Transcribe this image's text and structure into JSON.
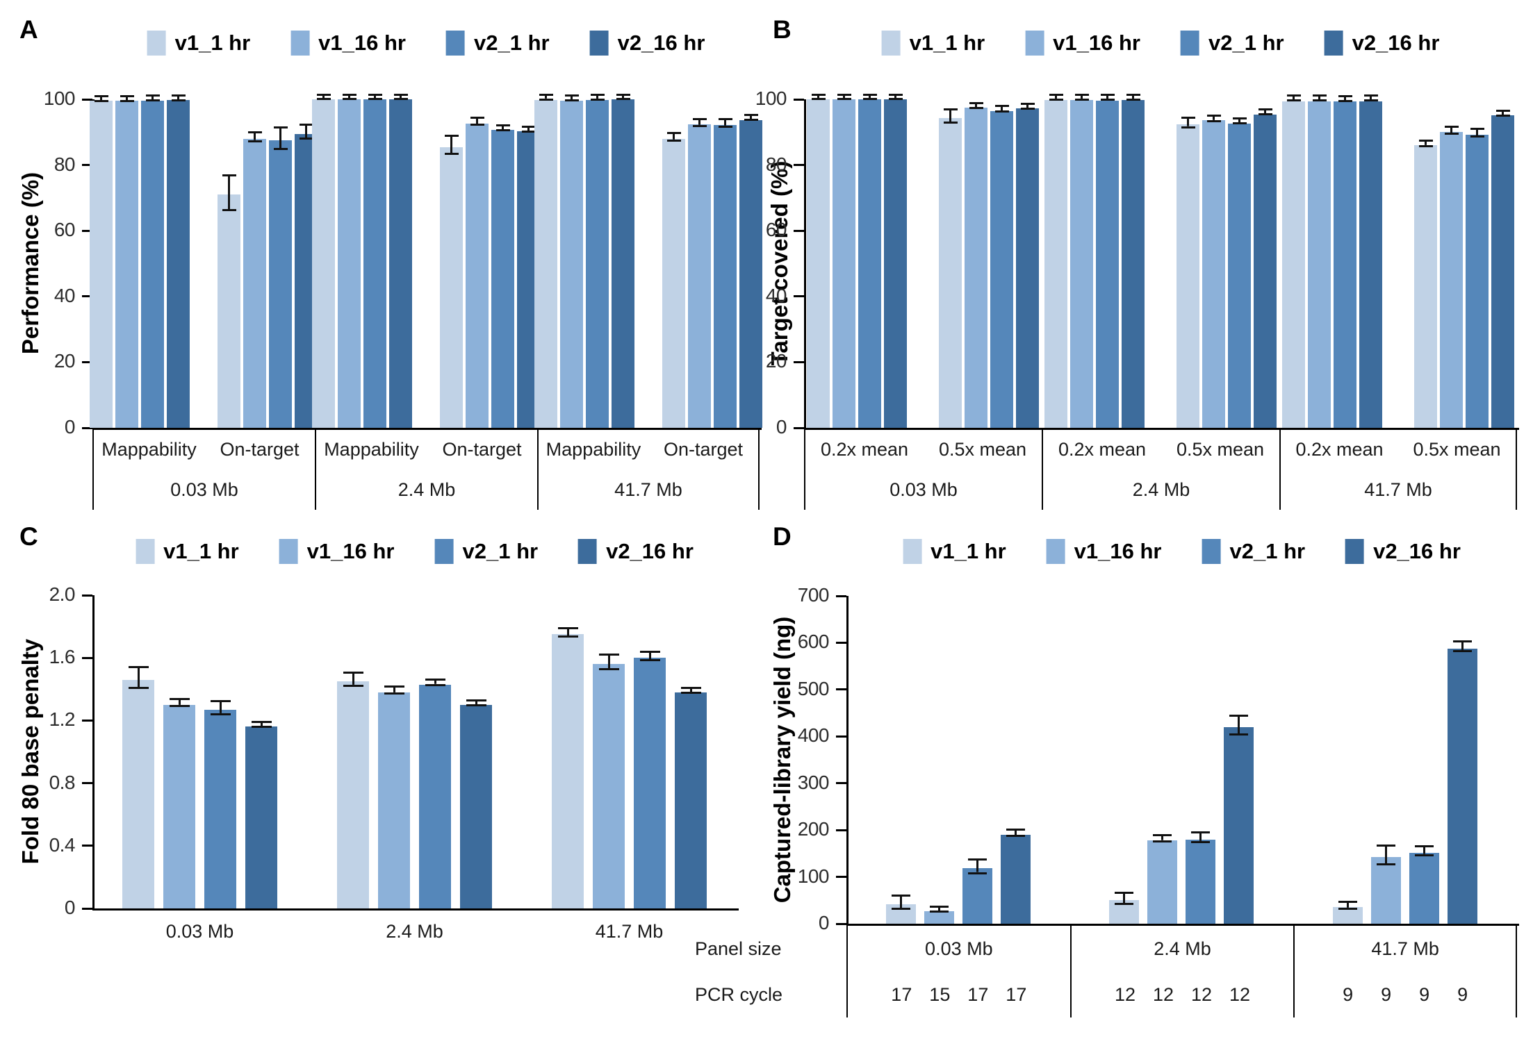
{
  "colors": {
    "background": "#ffffff",
    "axis": "#000000",
    "error_bar": "#111111"
  },
  "series": [
    {
      "name": "v1_1 hr",
      "color": "#c0d2e6"
    },
    {
      "name": "v1_16 hr",
      "color": "#8cb1d9"
    },
    {
      "name": "v2_1 hr",
      "color": "#5587ba"
    },
    {
      "name": "v2_16 hr",
      "color": "#3d6c9c"
    }
  ],
  "chart_data": [
    {
      "panel": "A",
      "type": "bar",
      "ylabel": "Performance (%)",
      "ylim": [
        0,
        100
      ],
      "ytick_labels": [
        "0",
        "20",
        "40",
        "60",
        "80",
        "100"
      ],
      "legend_position": "top-center",
      "grid": false,
      "groups": [
        {
          "label": "0.03 Mb",
          "subgroups": [
            {
              "label": "Mappability",
              "values": [
                99.5,
                99.6,
                99.6,
                99.7
              ],
              "errors": [
                0.4,
                0.4,
                0.3,
                0.3
              ]
            },
            {
              "label": "On-target",
              "values": [
                71.0,
                88.0,
                87.5,
                89.5
              ],
              "errors": [
                5.0,
                1.0,
                3.0,
                1.8
              ]
            }
          ]
        },
        {
          "label": "2.4 Mb",
          "subgroups": [
            {
              "label": "Mappability",
              "values": [
                99.9,
                99.9,
                99.9,
                99.9
              ],
              "errors": [
                0.15,
                0.15,
                0.15,
                0.15
              ]
            },
            {
              "label": "On-target",
              "values": [
                85.5,
                92.7,
                90.7,
                90.2
              ],
              "errors": [
                2.5,
                0.8,
                0.5,
                0.3
              ]
            }
          ]
        },
        {
          "label": "41.7 Mb",
          "subgroups": [
            {
              "label": "Mappability",
              "values": [
                99.8,
                99.6,
                99.8,
                99.9
              ],
              "errors": [
                0.15,
                0.3,
                0.2,
                0.15
              ]
            },
            {
              "label": "On-target",
              "values": [
                88.0,
                92.3,
                92.2,
                93.7
              ],
              "errors": [
                0.8,
                0.7,
                0.8,
                0.3
              ]
            }
          ]
        }
      ]
    },
    {
      "panel": "B",
      "type": "bar",
      "ylabel": "Target covered (%)",
      "ylim": [
        0,
        100
      ],
      "ytick_labels": [
        "0",
        "20",
        "40",
        "60",
        "80",
        "100"
      ],
      "legend_position": "top-center",
      "grid": false,
      "groups": [
        {
          "label": "0.03 Mb",
          "subgroups": [
            {
              "label": "0.2x mean",
              "values": [
                99.9,
                99.9,
                99.9,
                99.9
              ],
              "errors": [
                0.1,
                0.1,
                0.1,
                0.1
              ]
            },
            {
              "label": "0.5x mean",
              "values": [
                94.3,
                97.4,
                96.5,
                97.2
              ],
              "errors": [
                1.7,
                0.3,
                0.6,
                0.3
              ]
            }
          ]
        },
        {
          "label": "2.4 Mb",
          "subgroups": [
            {
              "label": "0.2x mean",
              "values": [
                99.7,
                99.7,
                99.6,
                99.7
              ],
              "errors": [
                0.1,
                0.1,
                0.1,
                0.1
              ]
            },
            {
              "label": "0.5x mean",
              "values": [
                92.3,
                93.6,
                92.6,
                95.4
              ],
              "errors": [
                1.1,
                0.5,
                0.3,
                0.3
              ]
            }
          ]
        },
        {
          "label": "41.7 Mb",
          "subgroups": [
            {
              "label": "0.2x mean",
              "values": [
                99.4,
                99.4,
                99.3,
                99.4
              ],
              "errors": [
                0.1,
                0.1,
                0.1,
                0.1
              ]
            },
            {
              "label": "0.5x mean",
              "values": [
                86.0,
                90.0,
                89.2,
                95.1
              ],
              "errors": [
                0.5,
                0.8,
                0.9,
                0.3
              ]
            }
          ]
        }
      ]
    },
    {
      "panel": "C",
      "type": "bar",
      "ylabel": "Fold 80 base penalty",
      "ylim": [
        0,
        2.0
      ],
      "ytick_labels": [
        "0",
        "0.4",
        "0.8",
        "1.2",
        "1.6",
        "2.0"
      ],
      "legend_position": "top-center",
      "grid": false,
      "groups": [
        {
          "label": "0.03 Mb",
          "subgroups": [
            {
              "label": "",
              "values": [
                1.46,
                1.3,
                1.27,
                1.16
              ],
              "errors": [
                0.06,
                0.015,
                0.035,
                0.008
              ]
            }
          ]
        },
        {
          "label": "2.4 Mb",
          "subgroups": [
            {
              "label": "",
              "values": [
                1.45,
                1.38,
                1.43,
                1.3
              ],
              "errors": [
                0.035,
                0.015,
                0.01,
                0.008
              ]
            }
          ]
        },
        {
          "label": "41.7 Mb",
          "subgroups": [
            {
              "label": "",
              "values": [
                1.75,
                1.56,
                1.6,
                1.38
              ],
              "errors": [
                0.02,
                0.04,
                0.02,
                0.01
              ]
            }
          ]
        }
      ]
    },
    {
      "panel": "D",
      "type": "bar",
      "ylabel": "Captured-library yield (ng)",
      "ylim": [
        0,
        700
      ],
      "ytick_labels": [
        "0",
        "100",
        "200",
        "300",
        "400",
        "500",
        "600",
        "700"
      ],
      "legend_position": "top-center",
      "grid": false,
      "row_headers": [
        "Panel size",
        "PCR cycle"
      ],
      "groups": [
        {
          "label": "0.03 Mb",
          "pcr_cycles": [
            "17",
            "15",
            "17",
            "17"
          ],
          "subgroups": [
            {
              "label": "",
              "values": [
                42,
                27,
                118,
                190
              ],
              "errors": [
                12,
                3,
                12,
                5
              ]
            }
          ]
        },
        {
          "label": "2.4 Mb",
          "pcr_cycles": [
            "12",
            "12",
            "12",
            "12"
          ],
          "subgroups": [
            {
              "label": "",
              "values": [
                50,
                178,
                180,
                420
              ],
              "errors": [
                10,
                4,
                8,
                18
              ]
            }
          ]
        },
        {
          "label": "41.7 Mb",
          "pcr_cycles": [
            "9",
            "9",
            "9",
            "9"
          ],
          "subgroups": [
            {
              "label": "",
              "values": [
                35,
                142,
                151,
                588
              ],
              "errors": [
                5,
                18,
                7,
                8
              ]
            }
          ]
        }
      ]
    }
  ]
}
